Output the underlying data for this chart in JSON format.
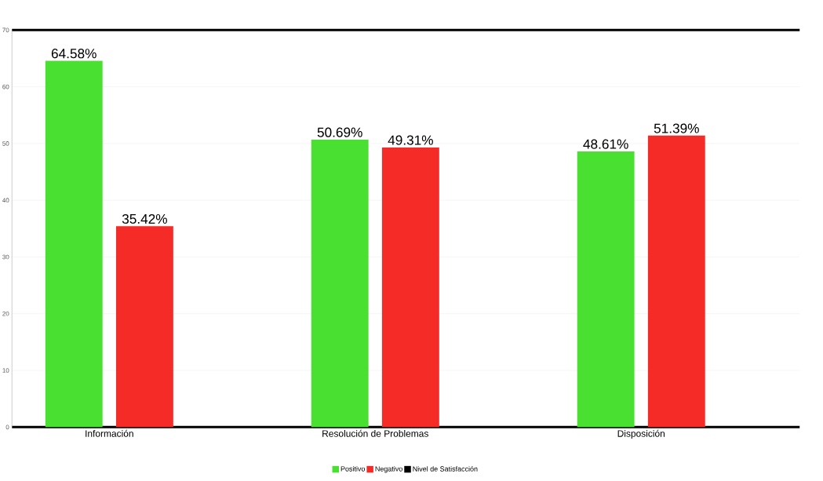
{
  "chart_data": {
    "type": "bar",
    "categories": [
      "Información",
      "Resolución de Problemas",
      "Disposición"
    ],
    "series": [
      {
        "name": "Positivo",
        "color": "#4ae031",
        "values": [
          64.58,
          50.69,
          48.61
        ],
        "value_labels": [
          "64.58%",
          "50.69%",
          "48.61%"
        ]
      },
      {
        "name": "Negativo",
        "color": "#f42b27",
        "values": [
          35.42,
          49.31,
          51.39
        ],
        "value_labels": [
          "35.42%",
          "49.31%",
          "51.39%"
        ]
      },
      {
        "name": "Nivel de Satisfacción",
        "color": "#000000",
        "type": "line",
        "values": [
          null,
          null,
          null
        ]
      }
    ],
    "ylim": [
      0,
      70
    ],
    "yticks": [
      0,
      10,
      20,
      30,
      40,
      50,
      60,
      70
    ],
    "grid": "y",
    "legend": "bottom"
  }
}
